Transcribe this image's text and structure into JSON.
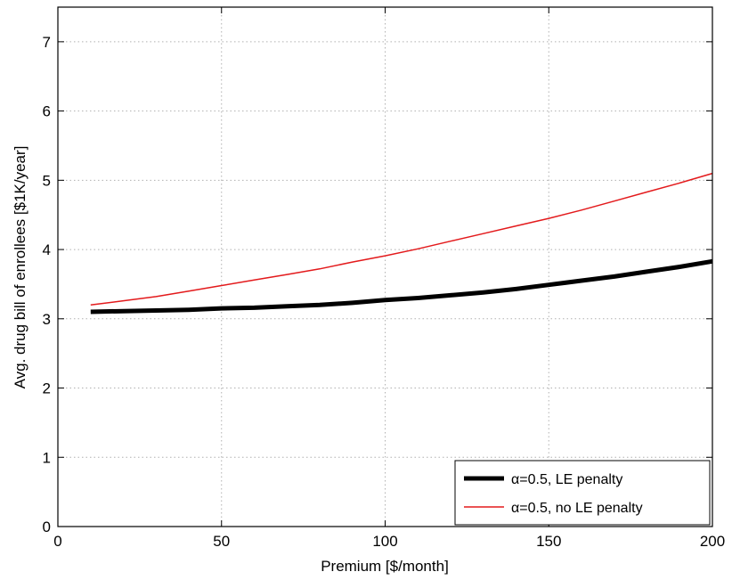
{
  "chart_data": {
    "type": "line",
    "xlabel": "Premium [$/month]",
    "ylabel": "Avg. drug bill of enrollees [$1K/year]",
    "xlim": [
      0,
      200
    ],
    "ylim": [
      0,
      7.5
    ],
    "xticks": [
      "0",
      "50",
      "100",
      "150",
      "200"
    ],
    "yticks": [
      "0",
      "1",
      "2",
      "3",
      "4",
      "5",
      "6",
      "7"
    ],
    "grid": true,
    "legend_position": "bottom-right",
    "series": [
      {
        "name": "α=0.5, LE penalty",
        "color": "#000000",
        "x": [
          10,
          20,
          30,
          40,
          50,
          60,
          70,
          80,
          90,
          100,
          110,
          120,
          130,
          140,
          150,
          160,
          170,
          180,
          190,
          200
        ],
        "y": [
          3.1,
          3.11,
          3.12,
          3.13,
          3.15,
          3.16,
          3.18,
          3.2,
          3.23,
          3.27,
          3.3,
          3.34,
          3.38,
          3.43,
          3.49,
          3.55,
          3.61,
          3.68,
          3.75,
          3.83
        ]
      },
      {
        "name": "α=0.5, no LE penalty",
        "color": "#e31a1c",
        "x": [
          10,
          20,
          30,
          40,
          50,
          60,
          70,
          80,
          90,
          100,
          110,
          120,
          130,
          140,
          150,
          160,
          170,
          180,
          190,
          200
        ],
        "y": [
          3.2,
          3.26,
          3.32,
          3.4,
          3.48,
          3.56,
          3.64,
          3.72,
          3.82,
          3.91,
          4.01,
          4.12,
          4.23,
          4.34,
          4.45,
          4.57,
          4.7,
          4.83,
          4.96,
          5.1
        ]
      }
    ]
  }
}
